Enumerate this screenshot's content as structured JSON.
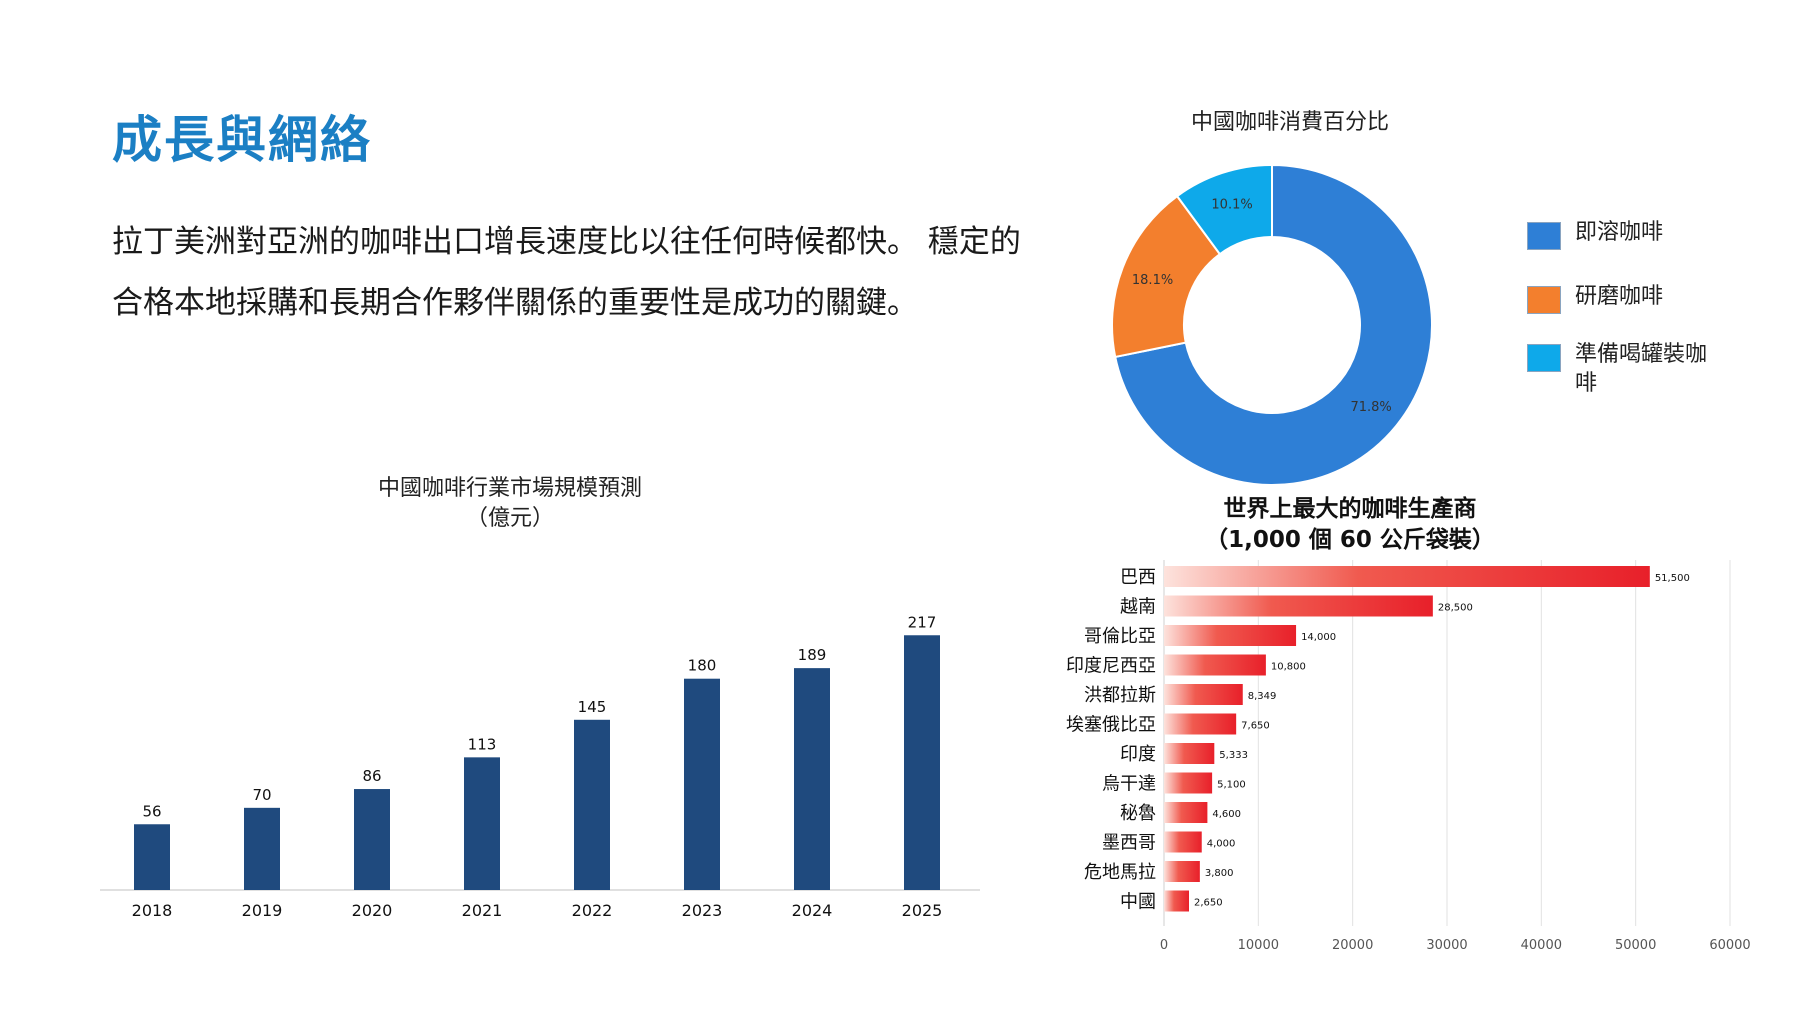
{
  "slide": {
    "title": "成長與網絡",
    "body": "拉丁美洲對亞洲的咖啡出口增長速度比以往任何時候都快。 穩定的合格本地採購和長期合作夥伴關係的重要性是成功的關鍵。"
  },
  "chart_data": [
    {
      "type": "bar",
      "title": "中國咖啡行業市場規模預測",
      "subtitle": "（億元）",
      "categories": [
        "2018",
        "2019",
        "2020",
        "2021",
        "2022",
        "2023",
        "2024",
        "2025"
      ],
      "values": [
        56,
        70,
        86,
        113,
        145,
        180,
        189,
        217
      ],
      "color": "#1f4a7e",
      "data_labels": true
    },
    {
      "type": "pie",
      "title": "中國咖啡消費百分比",
      "donut": true,
      "slices": [
        {
          "label": "即溶咖啡",
          "value": 71.8,
          "display": "71.8%",
          "color": "#2e7fd6"
        },
        {
          "label": "研磨咖啡",
          "value": 18.1,
          "display": "18.1%",
          "color": "#f37f2d"
        },
        {
          "label": "準備喝罐裝咖啡",
          "value": 10.1,
          "display": "10.1%",
          "color": "#0ea9ea"
        }
      ],
      "legend_position": "right"
    },
    {
      "type": "bar",
      "orientation": "horizontal",
      "title": "世界上最大的咖啡生產商",
      "subtitle": "（1,000 個 60 公斤袋裝）",
      "categories": [
        "巴西",
        "越南",
        "哥倫比亞",
        "印度尼西亞",
        "洪都拉斯",
        "埃塞俄比亞",
        "印度",
        "烏干達",
        "秘魯",
        "墨西哥",
        "危地馬拉",
        "中國"
      ],
      "values": [
        51500,
        28500,
        14000,
        10800,
        8349,
        7650,
        5333,
        5100,
        4600,
        4000,
        3800,
        2650
      ],
      "value_labels": [
        "51,500",
        "28,500",
        "14,000",
        "10,800",
        "8,349",
        "7,650",
        "5,333",
        "5,100",
        "4,600",
        "4,000",
        "3,800",
        "2,650"
      ],
      "xlim": [
        0,
        60000
      ],
      "xticks": [
        "0",
        "10000",
        "20000",
        "30000",
        "40000",
        "50000",
        "60000"
      ],
      "color": "#e8202a",
      "grid": true
    }
  ]
}
